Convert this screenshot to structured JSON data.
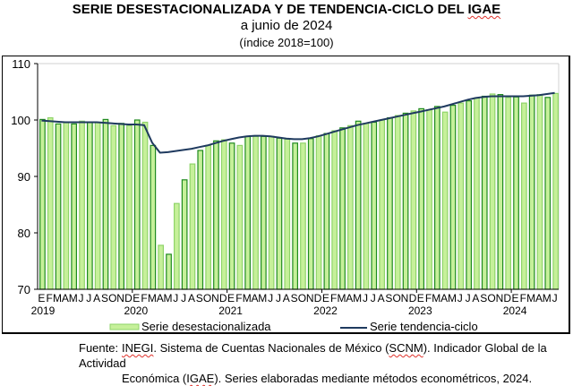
{
  "chart_data": {
    "type": "bar",
    "title": "SERIE DESESTACIONALIZADA Y DE TENDENCIA-CICLO DEL IGAE",
    "subtitle": "a junio de 2024",
    "subtitle2": "(índice 2018=100)",
    "title_parts": [
      "SERIE DESESTACIONALIZADA Y DE TENDENCIA-CICLO DEL ",
      "IGAE"
    ],
    "xlabel": "",
    "ylabel": "",
    "ylim": [
      70,
      110
    ],
    "yticks": [
      70,
      80,
      90,
      100,
      110
    ],
    "ytick_labels": [
      "70",
      "80",
      "90",
      "100",
      "110"
    ],
    "grid": "horizontal at 110 only",
    "legend_position": "bottom",
    "month_letters": [
      "E",
      "F",
      "M",
      "A",
      "M",
      "J",
      "J",
      "A",
      "S",
      "O",
      "N",
      "D"
    ],
    "years": [
      "2019",
      "2020",
      "2021",
      "2022",
      "2023",
      "2024"
    ],
    "series": [
      {
        "name": "Serie desestacionalizada",
        "type": "bar",
        "color": "#c6f09a",
        "border_light": "#8fd46a",
        "border_dark": "#1f8a1f",
        "values": [
          100.1,
          100.4,
          99.3,
          99.6,
          99.3,
          99.8,
          99.6,
          99.6,
          100.1,
          99.0,
          99.4,
          99.0,
          100.0,
          99.6,
          95.5,
          77.8,
          76.2,
          85.2,
          89.4,
          92.2,
          94.6,
          95.5,
          96.3,
          96.5,
          95.9,
          95.5,
          97.1,
          97.1,
          97.1,
          97.1,
          96.8,
          96.6,
          95.9,
          95.9,
          96.7,
          97.2,
          97.6,
          98.1,
          98.6,
          99.0,
          99.8,
          99.4,
          99.6,
          100.0,
          100.4,
          100.8,
          101.2,
          101.6,
          102.0,
          101.8,
          102.4,
          101.4,
          102.6,
          103.0,
          103.4,
          103.9,
          104.2,
          104.6,
          104.5,
          104.0,
          104.1,
          103.0,
          104.4,
          104.5,
          104.0,
          104.7
        ]
      },
      {
        "name": "Serie tendencia-ciclo",
        "type": "line",
        "color": "#1f3a5f",
        "values": [
          99.9,
          99.8,
          99.7,
          99.6,
          99.6,
          99.6,
          99.6,
          99.6,
          99.5,
          99.4,
          99.3,
          99.2,
          99.2,
          99.1,
          96.0,
          94.2,
          94.3,
          94.5,
          94.7,
          94.9,
          95.2,
          95.5,
          95.9,
          96.3,
          96.6,
          96.9,
          97.1,
          97.2,
          97.2,
          97.1,
          96.9,
          96.7,
          96.6,
          96.6,
          96.8,
          97.1,
          97.5,
          97.9,
          98.3,
          98.7,
          99.1,
          99.4,
          99.7,
          100.0,
          100.3,
          100.6,
          100.9,
          101.2,
          101.5,
          101.8,
          102.1,
          102.4,
          102.8,
          103.2,
          103.6,
          103.9,
          104.1,
          104.2,
          104.2,
          104.2,
          104.2,
          104.2,
          104.3,
          104.4,
          104.6,
          104.8
        ]
      }
    ]
  },
  "footer": {
    "label": "Fuente:",
    "line1_parts": [
      "INEGI",
      ". Sistema de Cuentas Nacionales de México (",
      "SCNM",
      "). Indicador Global de la Actividad"
    ],
    "line2_parts": [
      "Económica (",
      "IGAE",
      "). Series elaboradas mediante métodos econométricos, 2024."
    ]
  }
}
